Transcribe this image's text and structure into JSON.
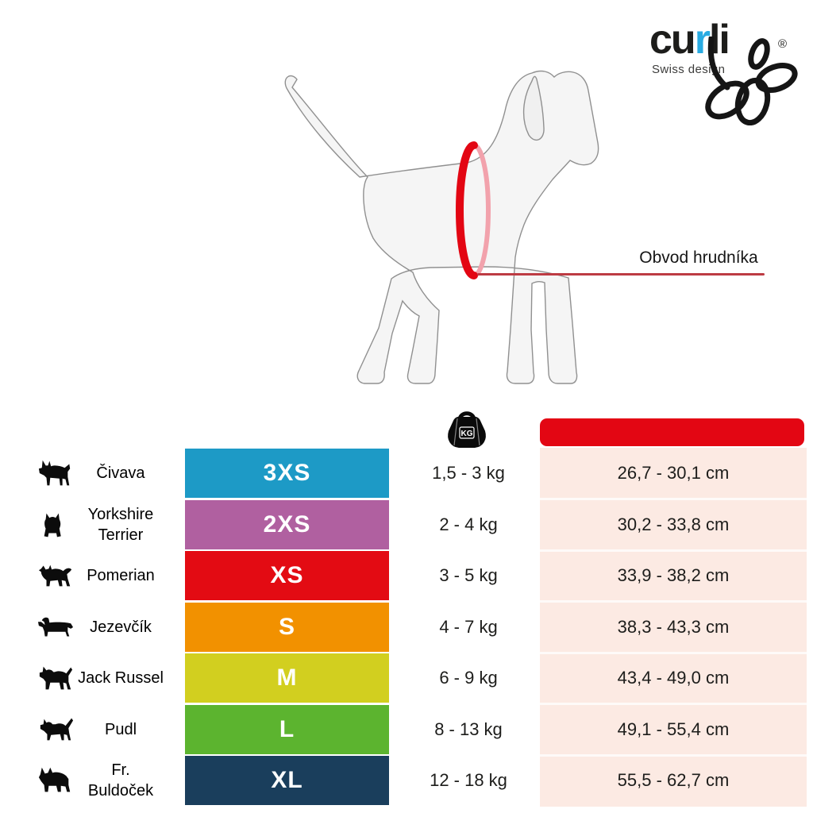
{
  "logo": {
    "brand_prefix": "cu",
    "brand_r": "r",
    "brand_suffix": "li",
    "tagline": "Swiss design",
    "registered": "®",
    "accent_blue": "#29abe2"
  },
  "diagram": {
    "measurement_label": "Obvod hrudníka",
    "ring_red": "#e30613",
    "ring_pink": "#f2a2ac",
    "line_red": "#bd3b43"
  },
  "table": {
    "weight_icon": "kg-weight-icon",
    "weight_icon_label": "KG",
    "colors": {
      "header_red": "#e30613",
      "column_pink": "#fceae3"
    },
    "rows": [
      {
        "breed": "Čivava",
        "icon": "chihuahua-icon",
        "size": "3XS",
        "size_color": "#1d9ac6",
        "weight": "1,5 - 3 kg",
        "chest": "26,7 - 30,1 cm"
      },
      {
        "breed": "Yorkshire Terrier",
        "icon": "yorkshire-terrier-icon",
        "size": "2XS",
        "size_color": "#b060a0",
        "weight": "2 - 4 kg",
        "chest": "30,2 - 33,8 cm"
      },
      {
        "breed": "Pomerian",
        "icon": "pomeranian-icon",
        "size": "XS",
        "size_color": "#e30b13",
        "weight": "3 - 5 kg",
        "chest": "33,9 - 38,2 cm"
      },
      {
        "breed": "Jezevčík",
        "icon": "dachshund-icon",
        "size": "S",
        "size_color": "#f29100",
        "weight": "4 - 7 kg",
        "chest": "38,3 - 43,3 cm"
      },
      {
        "breed": "Jack Russel",
        "icon": "jack-russell-icon",
        "size": "M",
        "size_color": "#d2cf1f",
        "weight": "6 - 9 kg",
        "chest": "43,4 - 49,0 cm"
      },
      {
        "breed": "Pudl",
        "icon": "terrier-icon",
        "size": "L",
        "size_color": "#5cb42f",
        "weight": "8 - 13 kg",
        "chest": "49,1 - 55,4 cm"
      },
      {
        "breed": "Fr. Buldoček",
        "icon": "french-bulldog-icon",
        "size": "XL",
        "size_color": "#1a3e5c",
        "weight": "12 - 18 kg",
        "chest": "55,5 - 62,7 cm"
      }
    ]
  }
}
